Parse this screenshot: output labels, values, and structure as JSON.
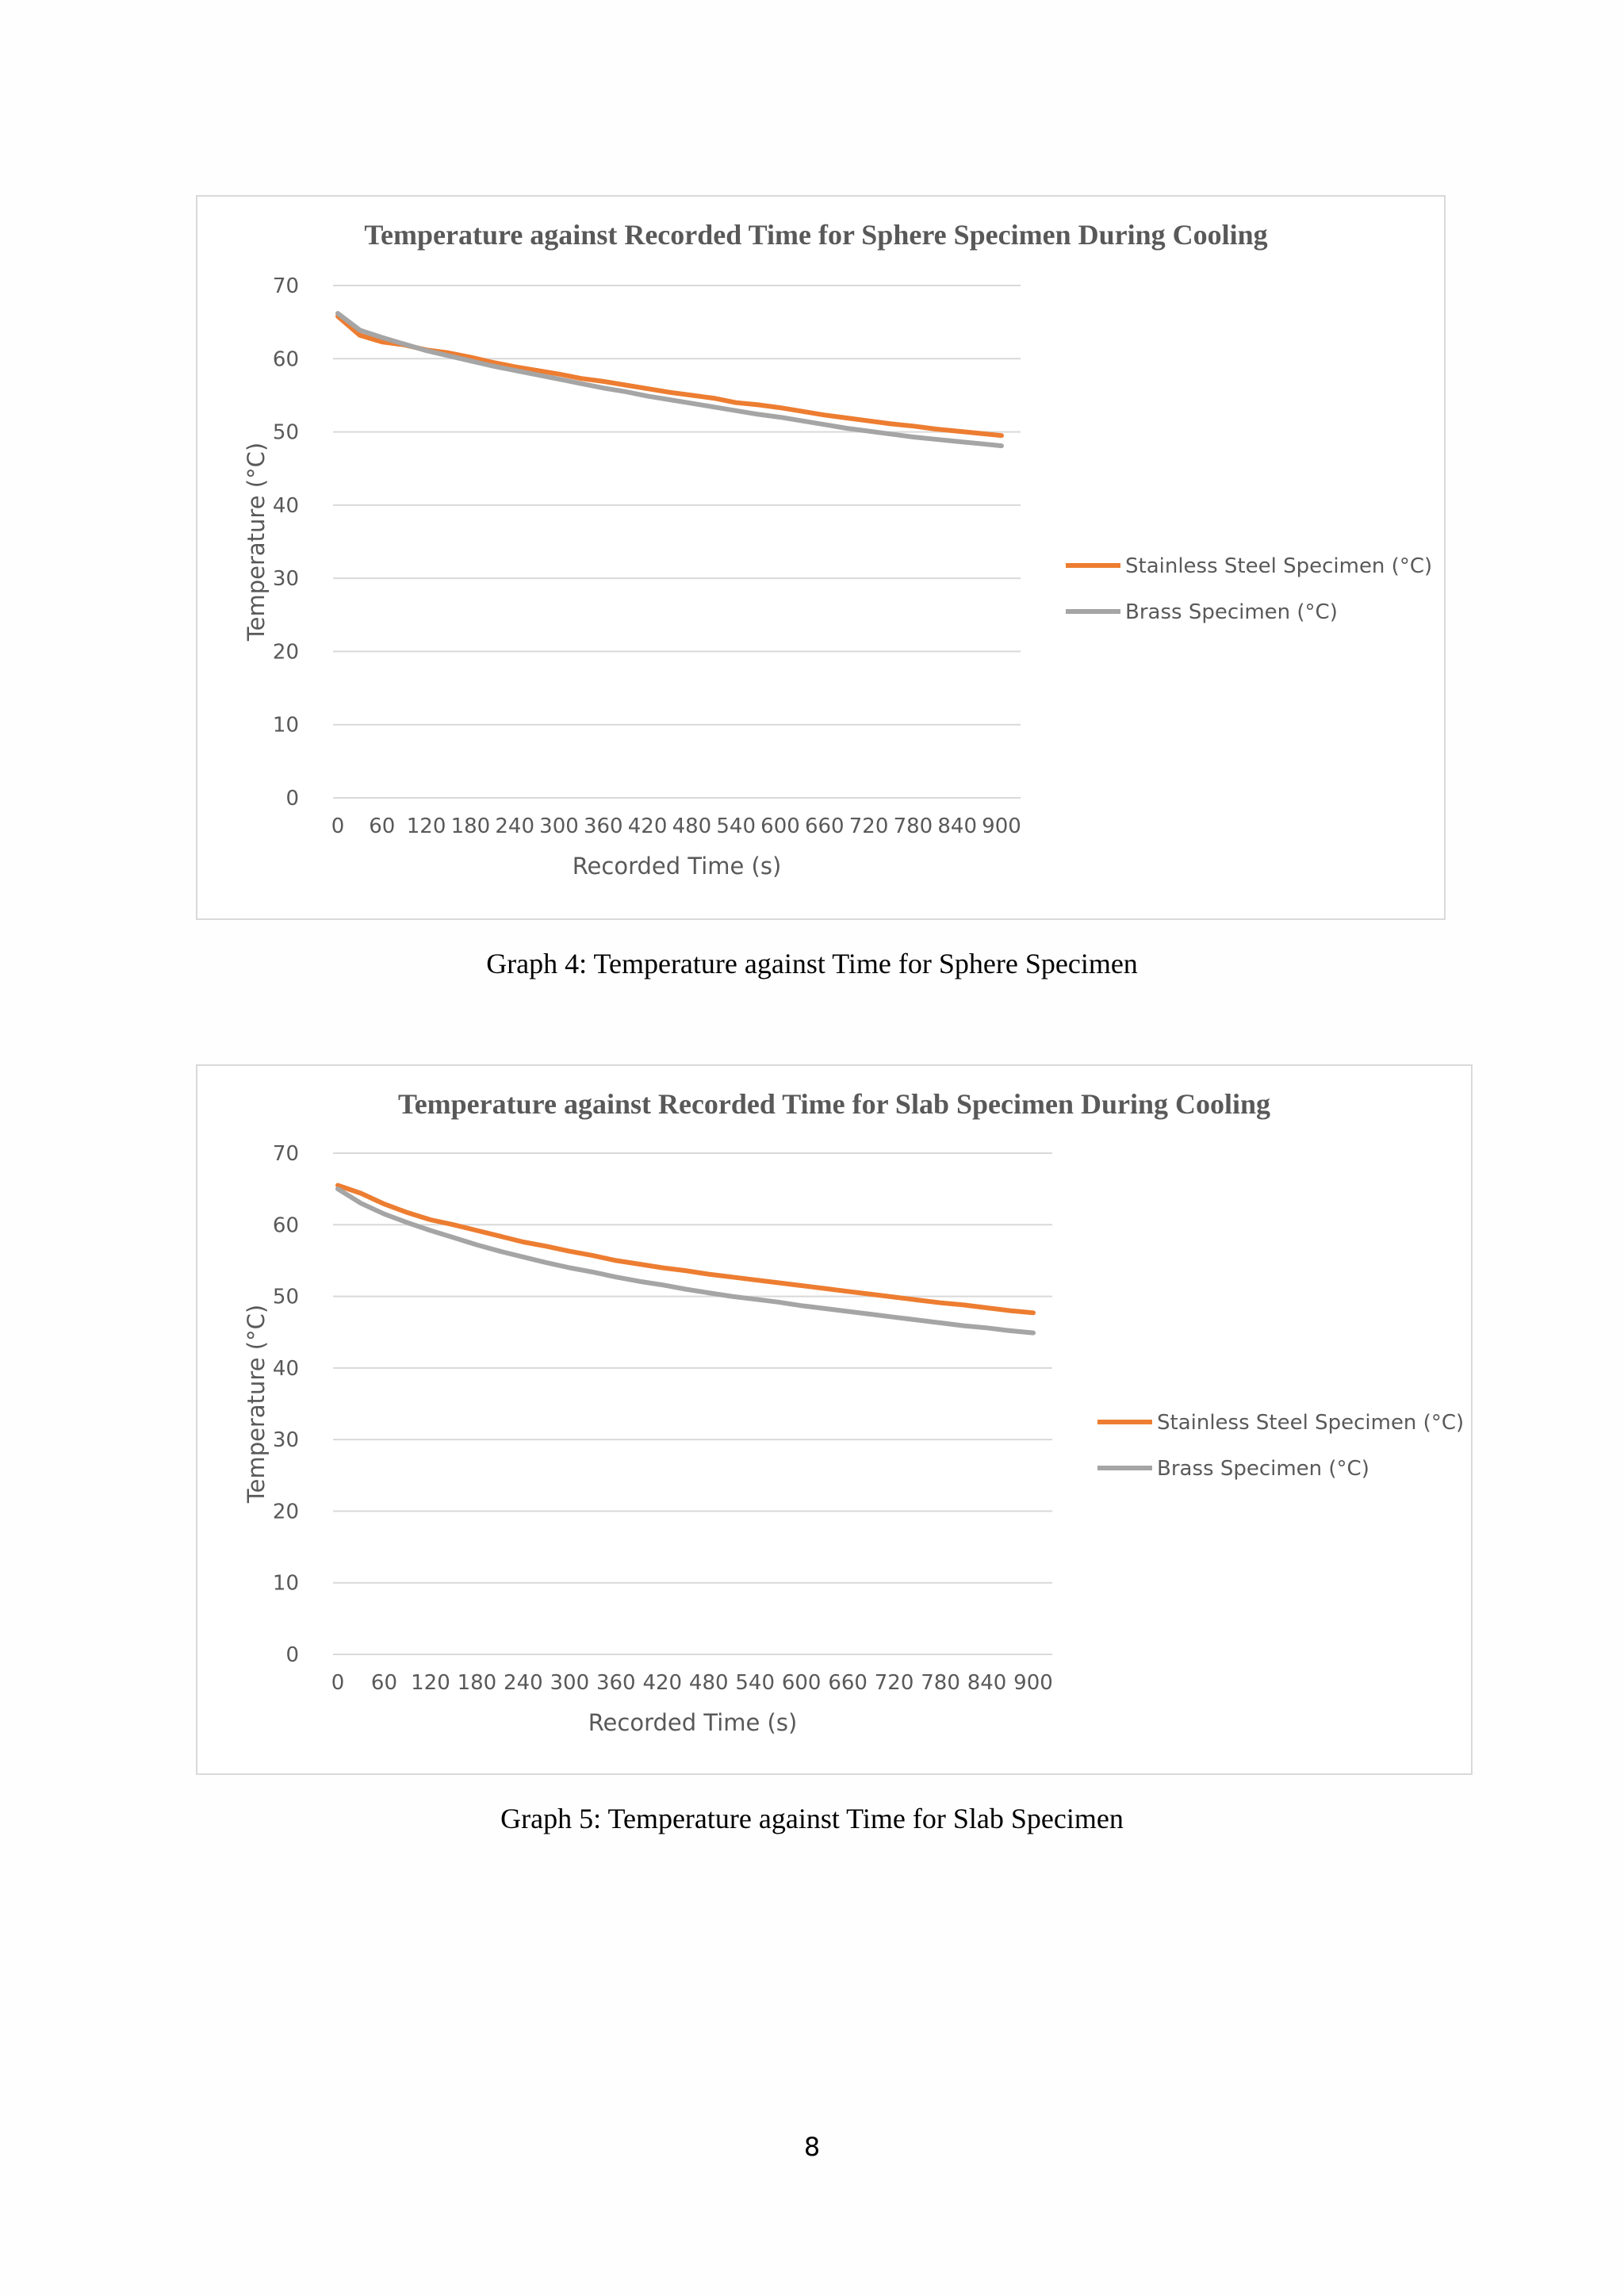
{
  "colors": {
    "stainless": "#ED7D31",
    "brass": "#A5A5A5",
    "grid": "#D9D9D9",
    "text": "#595959"
  },
  "chart_data": [
    {
      "type": "line",
      "title": "Temperature against Recorded Time for Sphere Specimen During Cooling",
      "xlabel": "Recorded Time (s)",
      "ylabel": "Temperature (°C)",
      "xlim": [
        0,
        900
      ],
      "ylim": [
        0,
        70
      ],
      "xticks": [
        0,
        60,
        120,
        180,
        240,
        300,
        360,
        420,
        480,
        540,
        600,
        660,
        720,
        780,
        840,
        900
      ],
      "yticks": [
        0,
        10,
        20,
        30,
        40,
        50,
        60,
        70
      ],
      "grid": true,
      "legend_position": "right",
      "x": [
        0,
        30,
        60,
        90,
        120,
        150,
        180,
        210,
        240,
        270,
        300,
        330,
        360,
        390,
        420,
        450,
        480,
        510,
        540,
        570,
        600,
        630,
        660,
        690,
        720,
        750,
        780,
        810,
        840,
        870,
        900
      ],
      "series": [
        {
          "name": "Stainless Steel  Specimen (°C)",
          "color": "#ED7D31",
          "values": [
            65.8,
            63.2,
            62.3,
            61.9,
            61.2,
            60.8,
            60.2,
            59.5,
            58.9,
            58.4,
            57.9,
            57.3,
            56.9,
            56.4,
            55.9,
            55.4,
            55.0,
            54.6,
            54.0,
            53.7,
            53.3,
            52.8,
            52.3,
            51.9,
            51.5,
            51.1,
            50.8,
            50.4,
            50.1,
            49.8,
            49.5
          ]
        },
        {
          "name": "Brass Specimen (°C)",
          "color": "#A5A5A5",
          "values": [
            66.2,
            63.9,
            62.9,
            62.0,
            61.1,
            60.4,
            59.7,
            59.0,
            58.4,
            57.8,
            57.2,
            56.6,
            56.0,
            55.5,
            54.9,
            54.4,
            53.9,
            53.4,
            52.9,
            52.4,
            52.0,
            51.5,
            51.0,
            50.5,
            50.1,
            49.7,
            49.3,
            49.0,
            48.7,
            48.4,
            48.1
          ]
        }
      ]
    },
    {
      "type": "line",
      "title": "Temperature against Recorded Time for Slab Specimen During Cooling",
      "xlabel": "Recorded Time (s)",
      "ylabel": "Temperature (°C)",
      "xlim": [
        0,
        900
      ],
      "ylim": [
        0,
        70
      ],
      "xticks": [
        0,
        60,
        120,
        180,
        240,
        300,
        360,
        420,
        480,
        540,
        600,
        660,
        720,
        780,
        840,
        900
      ],
      "yticks": [
        0,
        10,
        20,
        30,
        40,
        50,
        60,
        70
      ],
      "grid": true,
      "legend_position": "right",
      "x": [
        0,
        30,
        60,
        90,
        120,
        150,
        180,
        210,
        240,
        270,
        300,
        330,
        360,
        390,
        420,
        450,
        480,
        510,
        540,
        570,
        600,
        630,
        660,
        690,
        720,
        750,
        780,
        810,
        840,
        870,
        900
      ],
      "series": [
        {
          "name": "Stainless Steel Specimen (°C)",
          "color": "#ED7D31",
          "values": [
            65.5,
            64.4,
            62.9,
            61.7,
            60.7,
            60.0,
            59.2,
            58.4,
            57.6,
            57.0,
            56.3,
            55.7,
            55.0,
            54.5,
            54.0,
            53.6,
            53.1,
            52.7,
            52.3,
            51.9,
            51.5,
            51.1,
            50.7,
            50.3,
            49.9,
            49.5,
            49.1,
            48.8,
            48.4,
            48.0,
            47.7
          ]
        },
        {
          "name": "Brass Specimen (°C)",
          "color": "#A5A5A5",
          "values": [
            65.0,
            63.0,
            61.5,
            60.3,
            59.2,
            58.2,
            57.2,
            56.3,
            55.5,
            54.7,
            54.0,
            53.4,
            52.7,
            52.1,
            51.6,
            51.0,
            50.5,
            50.0,
            49.6,
            49.2,
            48.7,
            48.3,
            47.9,
            47.5,
            47.1,
            46.7,
            46.3,
            45.9,
            45.6,
            45.2,
            44.9
          ]
        }
      ]
    }
  ],
  "captions": {
    "graph4": "Graph 4: Temperature against Time for Sphere Specimen",
    "graph5": "Graph 5: Temperature against Time for Slab Specimen"
  },
  "page_number": "8"
}
